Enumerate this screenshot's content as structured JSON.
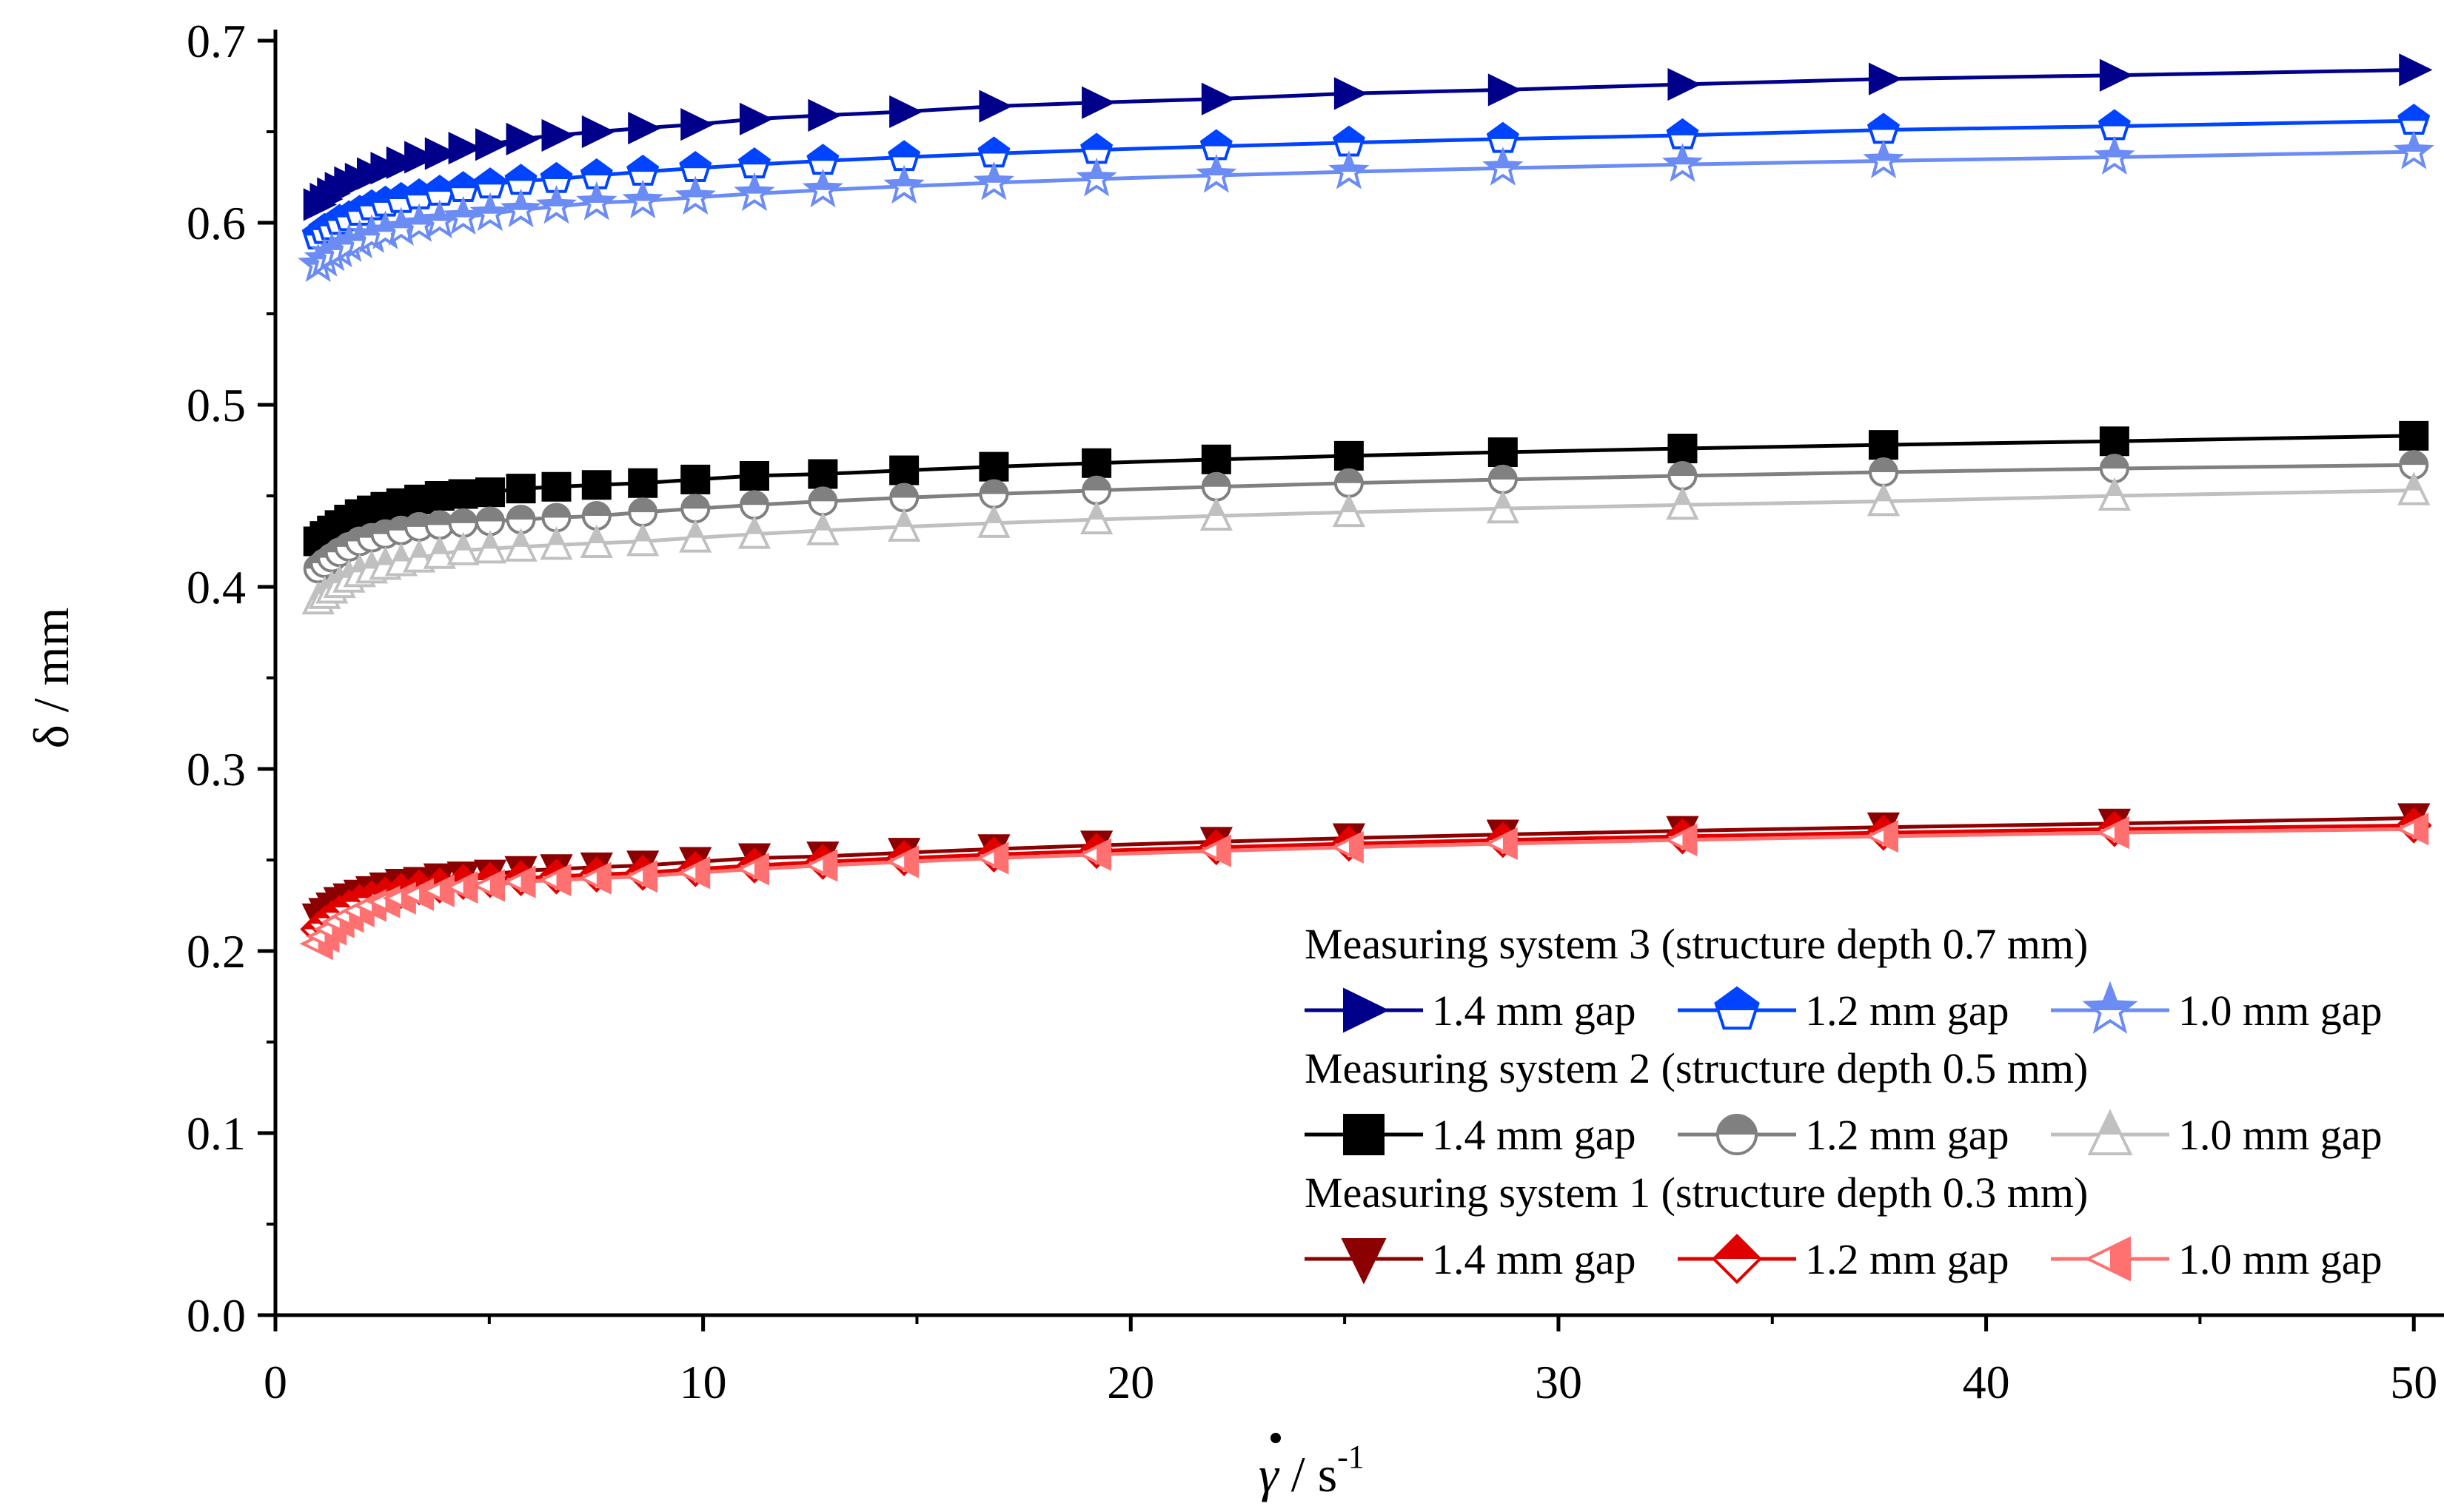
{
  "chart_data": {
    "type": "line",
    "title": "",
    "xlabel": "γ̇ / s⁻¹",
    "xlabel_parts": {
      "symbol": "γ",
      "mid": " / s",
      "sup": "-1"
    },
    "ylabel": "δ / mm",
    "xlim": [
      0,
      51
    ],
    "ylim": [
      0,
      0.7
    ],
    "x_ticks": [
      0,
      10,
      20,
      30,
      40,
      50
    ],
    "y_ticks": [
      0.0,
      0.1,
      0.2,
      0.3,
      0.4,
      0.5,
      0.6,
      0.7
    ],
    "x_tick_labels": [
      "0",
      "10",
      "20",
      "30",
      "40",
      "50"
    ],
    "y_tick_labels": [
      "0.0",
      "0.1",
      "0.2",
      "0.3",
      "0.4",
      "0.5",
      "0.6",
      "0.7"
    ],
    "grid": false,
    "legend_position": "bottom-right",
    "x": [
      1.0,
      1.15,
      1.32,
      1.5,
      1.72,
      1.97,
      2.25,
      2.57,
      2.94,
      3.36,
      3.84,
      4.39,
      5.02,
      5.74,
      6.57,
      7.51,
      8.59,
      9.82,
      11.2,
      12.8,
      14.7,
      16.8,
      19.2,
      22.0,
      25.1,
      28.7,
      32.9,
      37.6,
      43.0,
      50.0
    ],
    "groups": [
      {
        "header": "Measuring system 3 (structure depth 0.7 mm)",
        "series": [
          {
            "name": "1.4 mm gap",
            "color": "#00008B",
            "marker": "triangle-right",
            "filled": true,
            "values": [
              0.61,
              0.613,
              0.616,
              0.619,
              0.622,
              0.624,
              0.627,
              0.63,
              0.633,
              0.636,
              0.638,
              0.641,
              0.643,
              0.646,
              0.648,
              0.65,
              0.652,
              0.654,
              0.657,
              0.659,
              0.661,
              0.664,
              0.666,
              0.668,
              0.671,
              0.673,
              0.676,
              0.679,
              0.681,
              0.684
            ]
          },
          {
            "name": "1.2 mm gap",
            "color": "#0044FF",
            "marker": "pentagon",
            "filled": "half",
            "values": [
              0.593,
              0.596,
              0.598,
              0.601,
              0.603,
              0.606,
              0.609,
              0.611,
              0.613,
              0.615,
              0.617,
              0.619,
              0.621,
              0.623,
              0.624,
              0.626,
              0.628,
              0.63,
              0.632,
              0.634,
              0.636,
              0.638,
              0.64,
              0.642,
              0.644,
              0.646,
              0.648,
              0.651,
              0.653,
              0.656
            ]
          },
          {
            "name": "1.0 mm gap",
            "color": "#6B8BF5",
            "marker": "star",
            "filled": "half",
            "values": [
              0.577,
              0.58,
              0.583,
              0.585,
              0.588,
              0.59,
              0.593,
              0.595,
              0.597,
              0.599,
              0.601,
              0.603,
              0.605,
              0.607,
              0.609,
              0.611,
              0.612,
              0.614,
              0.616,
              0.618,
              0.62,
              0.622,
              0.624,
              0.626,
              0.628,
              0.63,
              0.632,
              0.634,
              0.636,
              0.639
            ]
          }
        ]
      },
      {
        "header": "Measuring system 2 (structure depth 0.5 mm)",
        "series": [
          {
            "name": "1.4 mm gap",
            "color": "#000000",
            "marker": "square",
            "filled": true,
            "values": [
              0.425,
              0.428,
              0.431,
              0.434,
              0.437,
              0.44,
              0.442,
              0.444,
              0.446,
              0.448,
              0.45,
              0.451,
              0.452,
              0.454,
              0.455,
              0.456,
              0.457,
              0.459,
              0.461,
              0.462,
              0.464,
              0.466,
              0.468,
              0.47,
              0.472,
              0.474,
              0.476,
              0.478,
              0.48,
              0.483
            ]
          },
          {
            "name": "1.2 mm gap",
            "color": "#808080",
            "marker": "circle",
            "filled": "half",
            "values": [
              0.41,
              0.413,
              0.416,
              0.419,
              0.422,
              0.425,
              0.427,
              0.429,
              0.431,
              0.433,
              0.434,
              0.435,
              0.436,
              0.437,
              0.438,
              0.439,
              0.441,
              0.443,
              0.445,
              0.447,
              0.449,
              0.451,
              0.453,
              0.455,
              0.457,
              0.459,
              0.461,
              0.463,
              0.465,
              0.467
            ]
          },
          {
            "name": "1.0 mm gap",
            "color": "#C0C0C0",
            "marker": "triangle-up",
            "filled": "half",
            "values": [
              0.393,
              0.396,
              0.399,
              0.402,
              0.405,
              0.408,
              0.41,
              0.412,
              0.414,
              0.416,
              0.418,
              0.42,
              0.421,
              0.422,
              0.423,
              0.424,
              0.425,
              0.427,
              0.429,
              0.431,
              0.433,
              0.435,
              0.437,
              0.439,
              0.441,
              0.443,
              0.445,
              0.447,
              0.45,
              0.453
            ]
          }
        ]
      },
      {
        "header": "Measuring system 1 (structure depth 0.3 mm)",
        "series": [
          {
            "name": "1.4 mm gap",
            "color": "#8B0000",
            "marker": "triangle-down",
            "filled": true,
            "values": [
              0.218,
              0.221,
              0.224,
              0.227,
              0.229,
              0.231,
              0.233,
              0.235,
              0.237,
              0.238,
              0.24,
              0.241,
              0.242,
              0.244,
              0.245,
              0.246,
              0.247,
              0.249,
              0.251,
              0.252,
              0.254,
              0.256,
              0.258,
              0.26,
              0.262,
              0.264,
              0.266,
              0.268,
              0.27,
              0.273
            ]
          },
          {
            "name": "1.2 mm gap",
            "color": "#E00000",
            "marker": "diamond",
            "filled": "half",
            "values": [
              0.212,
              0.215,
              0.218,
              0.221,
              0.224,
              0.227,
              0.229,
              0.231,
              0.233,
              0.235,
              0.236,
              0.238,
              0.239,
              0.24,
              0.241,
              0.242,
              0.243,
              0.245,
              0.247,
              0.249,
              0.251,
              0.253,
              0.255,
              0.257,
              0.259,
              0.261,
              0.263,
              0.265,
              0.267,
              0.269
            ]
          },
          {
            "name": "1.0 mm gap",
            "color": "#FF7070",
            "marker": "triangle-left",
            "filled": "half",
            "values": [
              0.204,
              0.208,
              0.212,
              0.216,
              0.219,
              0.222,
              0.225,
              0.227,
              0.229,
              0.231,
              0.233,
              0.235,
              0.236,
              0.238,
              0.239,
              0.24,
              0.241,
              0.243,
              0.245,
              0.247,
              0.249,
              0.251,
              0.253,
              0.255,
              0.257,
              0.259,
              0.261,
              0.263,
              0.265,
              0.267
            ]
          }
        ]
      }
    ]
  }
}
